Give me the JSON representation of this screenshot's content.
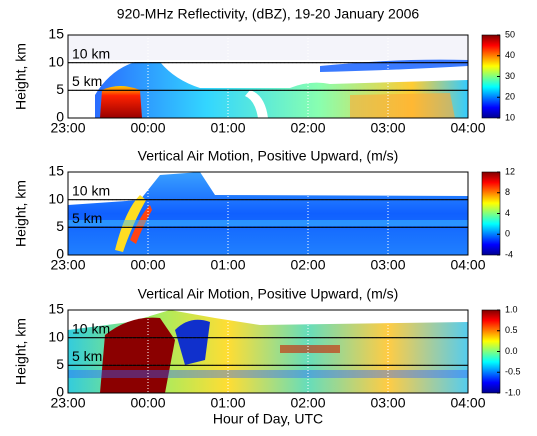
{
  "chart_data": [
    {
      "type": "heatmap",
      "title": "920-MHz Reflectivity, (dBZ), 19-20 January 2006",
      "ylabel": "Height, km",
      "xlim": [
        23,
        28
      ],
      "xticks": [
        {
          "value": 23,
          "label": "23:00"
        },
        {
          "value": 24,
          "label": "00:00"
        },
        {
          "value": 25,
          "label": "01:00"
        },
        {
          "value": 26,
          "label": "02:00"
        },
        {
          "value": 27,
          "label": "03:00"
        },
        {
          "value": 28,
          "label": "04:00"
        }
      ],
      "ylim": [
        0,
        15
      ],
      "yticks": [
        0,
        5,
        10,
        15
      ],
      "grid": true,
      "hlines": [
        {
          "value": 10,
          "label": "10 km"
        },
        {
          "value": 5,
          "label": "5 km"
        }
      ],
      "clim": [
        10,
        50
      ],
      "cticks": [
        10,
        20,
        30,
        40,
        50
      ]
    },
    {
      "type": "heatmap",
      "title": "Vertical Air Motion, Positive Upward, (m/s)",
      "ylabel": "Height, km",
      "xlim": [
        23,
        28
      ],
      "xticks": [
        {
          "value": 23,
          "label": "23:00"
        },
        {
          "value": 24,
          "label": "00:00"
        },
        {
          "value": 25,
          "label": "01:00"
        },
        {
          "value": 26,
          "label": "02:00"
        },
        {
          "value": 27,
          "label": "03:00"
        },
        {
          "value": 28,
          "label": "04:00"
        }
      ],
      "ylim": [
        0,
        15
      ],
      "yticks": [
        0,
        5,
        10,
        15
      ],
      "grid": true,
      "hlines": [
        {
          "value": 10,
          "label": "10 km"
        },
        {
          "value": 5,
          "label": "5 km"
        }
      ],
      "clim": [
        -4,
        12
      ],
      "cticks": [
        -4,
        0,
        4,
        8,
        12
      ]
    },
    {
      "type": "heatmap",
      "title": "Vertical Air Motion, Positive Upward, (m/s)",
      "ylabel": "Height, km",
      "xlabel": "Hour of Day, UTC",
      "xlim": [
        23,
        28
      ],
      "xticks": [
        {
          "value": 23,
          "label": "23:00"
        },
        {
          "value": 24,
          "label": "00:00"
        },
        {
          "value": 25,
          "label": "01:00"
        },
        {
          "value": 26,
          "label": "02:00"
        },
        {
          "value": 27,
          "label": "03:00"
        },
        {
          "value": 28,
          "label": "04:00"
        }
      ],
      "ylim": [
        0,
        15
      ],
      "yticks": [
        0,
        5,
        10,
        15
      ],
      "grid": true,
      "hlines": [
        {
          "value": 10,
          "label": "10 km"
        },
        {
          "value": 5,
          "label": "5 km"
        }
      ],
      "clim": [
        -1,
        1
      ],
      "cticks": [
        {
          "value": -1,
          "label": "-1.0"
        },
        {
          "value": -0.5,
          "label": "-0.5"
        },
        {
          "value": 0,
          "label": "0.0"
        },
        {
          "value": 0.5,
          "label": "0.5"
        },
        {
          "value": 1,
          "label": "1.0"
        }
      ]
    }
  ]
}
